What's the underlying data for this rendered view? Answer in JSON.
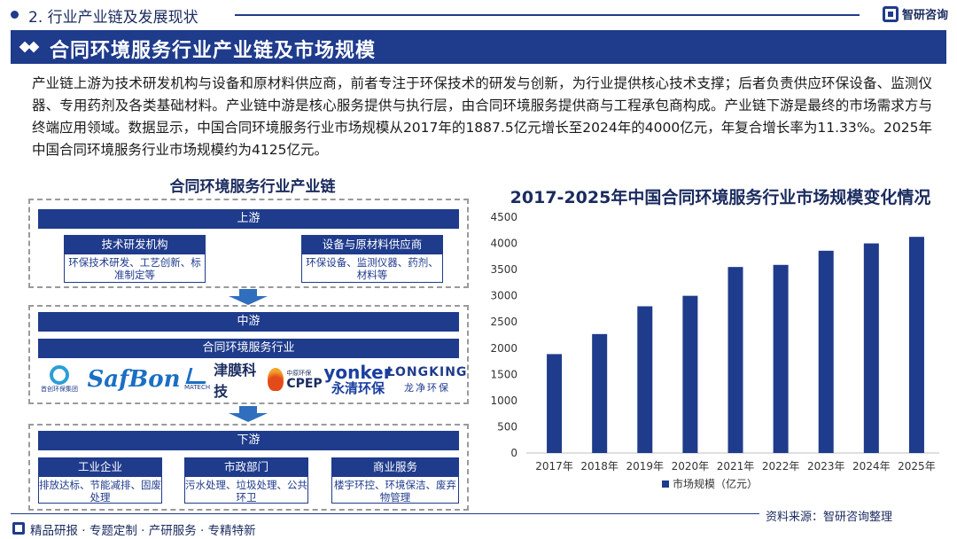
{
  "header": {
    "section": "2. 行业产业链及发展现状",
    "brand": "智研咨询"
  },
  "title": "合同环境服务行业产业链及市场规模",
  "intro": "产业链上游为技术研发机构与设备和原材料供应商，前者专注于环保技术的研发与创新，为行业提供核心技术支撑；后者负责供应环保设备、监测仪器、专用药剂及各类基础材料。产业链中游是核心服务提供与执行层，由合同环境服务提供商与工程承包商构成。产业链下游是最终的市场需求方与终端应用领域。数据显示，中国合同环境服务行业市场规模从2017年的1887.5亿元增长至2024年的4000亿元，年复合增长率为11.33%。2025年中国合同环境服务行业市场规模约为4125亿元。",
  "chain": {
    "title": "合同环境服务行业产业链",
    "upstream": {
      "label": "上游",
      "nodes": [
        {
          "title": "技术研发机构",
          "desc": "环保技术研发、工艺创新、标准制定等"
        },
        {
          "title": "设备与原材料供应商",
          "desc": "环保设备、监测仪器、药剂、材料等"
        }
      ]
    },
    "midstream": {
      "label": "中游",
      "sub": "合同环境服务行业",
      "logos": {
        "first": "首创环保集团",
        "safbon": "SafBon",
        "jinfu_en": "MATECH",
        "jinfu_cn": "津膜科技",
        "cpep_en": "CPEP",
        "cpep_cn": "中原环保",
        "yonker_en": "yonker",
        "yonker_cn": "永清环保",
        "long_en": "LONGKING",
        "long_cn": "龙净环保"
      }
    },
    "downstream": {
      "label": "下游",
      "nodes": [
        {
          "title": "工业企业",
          "desc": "排放达标、节能减排、固废处理"
        },
        {
          "title": "市政部门",
          "desc": "污水处理、垃圾处理、公共环卫"
        },
        {
          "title": "商业服务",
          "desc": "楼宇环控、环境保洁、废弃物管理"
        }
      ]
    }
  },
  "chart_data": {
    "type": "bar",
    "title": "2017-2025年中国合同环境服务行业市场规模变化情况",
    "categories": [
      "2017年",
      "2018年",
      "2019年",
      "2020年",
      "2021年",
      "2022年",
      "2023年",
      "2024年",
      "2025年"
    ],
    "series": [
      {
        "name": "市场规模（亿元）",
        "values": [
          1887.5,
          2270,
          2800,
          3000,
          3550,
          3590,
          3860,
          4000,
          4125
        ]
      }
    ],
    "yticks": [
      0,
      500,
      1000,
      1500,
      2000,
      2500,
      3000,
      3500,
      4000,
      4500
    ],
    "ylim": [
      0,
      4500
    ],
    "grid": false,
    "legend": "bottom",
    "color": "#1f3b8c"
  },
  "source": "资料来源：智研咨询整理",
  "footer": "精品研报 · 专题定制 · 产研服务 · 专精特新"
}
